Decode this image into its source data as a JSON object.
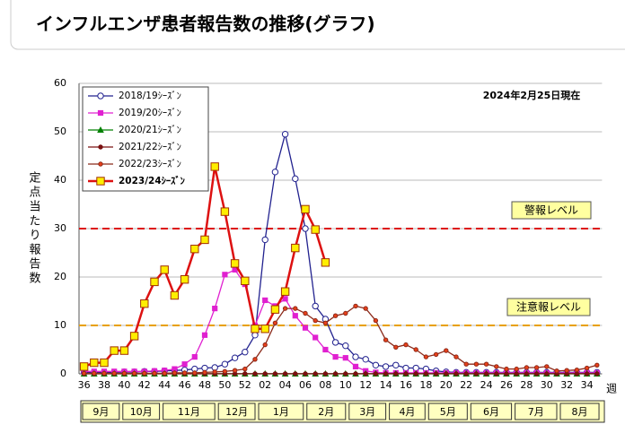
{
  "header": {
    "title": "インフルエンザ患者報告数の推移(グラフ)"
  },
  "chart_data": {
    "type": "line",
    "annotation": "2024年2月25日現在",
    "y_label": "定点当たり報告数",
    "x_label": "週",
    "categories": [
      "36",
      null,
      "38",
      null,
      "40",
      null,
      "42",
      null,
      "44",
      null,
      "46",
      null,
      "48",
      null,
      "50",
      null,
      "52",
      null,
      "02",
      null,
      "04",
      null,
      "06",
      null,
      "08",
      null,
      "10",
      null,
      "12",
      null,
      "14",
      null,
      "16",
      null,
      "18",
      null,
      "20",
      null,
      "22",
      null,
      "24",
      null,
      "26",
      null,
      "28",
      null,
      "30",
      null,
      "32",
      null,
      "34",
      null
    ],
    "months": [
      "9月",
      "10月",
      "11月",
      "12月",
      "1月",
      "2月",
      "3月",
      "4月",
      "5月",
      "6月",
      "7月",
      "8月"
    ],
    "ylim": [
      0,
      60
    ],
    "yticks": [
      0,
      10,
      20,
      30,
      40,
      50,
      60
    ],
    "grid": true,
    "legend": "upper left",
    "reference_lines": [
      {
        "value": 30,
        "label": "警報レベル",
        "color": "#dd1111"
      },
      {
        "value": 10,
        "label": "注意報レベル",
        "color": "#e8a000"
      }
    ],
    "series": [
      {
        "name": "2018/19ｼｰｽﾞﾝ",
        "color": "#22228f",
        "marker": "circle",
        "marker_fill": "#ffffff",
        "values": [
          0.3,
          0.3,
          0.3,
          0.3,
          0.4,
          0.4,
          0.5,
          0.5,
          0.6,
          0.7,
          0.8,
          1.0,
          1.2,
          1.3,
          2.0,
          3.3,
          4.5,
          8,
          27.7,
          41.7,
          49.5,
          40.3,
          30,
          14,
          11.3,
          6.5,
          5.8,
          3.5,
          3,
          1.8,
          1.5,
          1.8,
          1.2,
          1.2,
          1.0,
          0.6,
          0.4,
          0.3,
          0.3,
          0.3,
          0.3,
          0.3,
          0.3,
          0.3,
          0.3,
          0.3,
          0.3,
          0.3,
          0.3,
          0.3,
          0.3,
          0.3
        ]
      },
      {
        "name": "2019/20ｼｰｽﾞﾝ",
        "color": "#e020d0",
        "marker": "square",
        "marker_fill": "#e020d0",
        "values": [
          0.5,
          0.5,
          0.5,
          0.5,
          0.5,
          0.5,
          0.5,
          0.6,
          0.7,
          1.0,
          2.0,
          3.5,
          8.0,
          13.5,
          20.5,
          21.5,
          18.5,
          10,
          15.2,
          14,
          15.5,
          12,
          9.5,
          7.5,
          5,
          3.5,
          3.3,
          1.5,
          0.6,
          0.3,
          0.2,
          0.2,
          0.2,
          0.2,
          0.2,
          0.2,
          0.2,
          0.2,
          0.2,
          0.2,
          0.2,
          0.2,
          0.2,
          0.2,
          0.2,
          0.2,
          0.2,
          0.2,
          0.2,
          0.2,
          0.2,
          0.2
        ]
      },
      {
        "name": "2020/21ｼｰｽﾞﾝ",
        "color": "#008000",
        "marker": "triangle",
        "marker_fill": "#008000",
        "values": [
          0.01,
          0.01,
          0.01,
          0.01,
          0.01,
          0.01,
          0.01,
          0.01,
          0.01,
          0.01,
          0.01,
          0.01,
          0.01,
          0.01,
          0.01,
          0.01,
          0.01,
          0.01,
          0.01,
          0.01,
          0.01,
          0.01,
          0.01,
          0.01,
          0.01,
          0.01,
          0.01,
          0.01,
          0.01,
          0.01,
          0.01,
          0.01,
          0.01,
          0.01,
          0.01,
          0.01,
          0.01,
          0.01,
          0.01,
          0.01,
          0.01,
          0.01,
          0.01,
          0.01,
          0.01,
          0.01,
          0.01,
          0.01,
          0.01,
          0.01,
          0.01,
          0.01
        ]
      },
      {
        "name": "2021/22ｼｰｽﾞﾝ",
        "color": "#7a1010",
        "marker": "dot",
        "marker_fill": "#7a1010",
        "values": [
          0.02,
          0.02,
          0.02,
          0.02,
          0.02,
          0.02,
          0.02,
          0.02,
          0.02,
          0.02,
          0.02,
          0.02,
          0.02,
          0.02,
          0.02,
          0.02,
          0.02,
          0.02,
          0.02,
          0.02,
          0.02,
          0.02,
          0.02,
          0.02,
          0.02,
          0.02,
          0.02,
          0.02,
          0.02,
          0.02,
          0.02,
          0.02,
          0.02,
          0.02,
          0.02,
          0.02,
          0.02,
          0.02,
          0.02,
          0.02,
          0.02,
          0.02,
          0.02,
          0.02,
          0.02,
          0.02,
          0.02,
          0.02,
          0.02,
          0.02,
          0.02,
          0.02
        ]
      },
      {
        "name": "2022/23ｼｰｽﾞﾝ",
        "color": "#8b2a1a",
        "marker": "dot",
        "marker_fill": "#e8401a",
        "values": [
          0.1,
          0.1,
          0.1,
          0.1,
          0.1,
          0.1,
          0.1,
          0.1,
          0.1,
          0.2,
          0.2,
          0.2,
          0.3,
          0.4,
          0.5,
          0.7,
          1.0,
          3,
          6,
          10.5,
          13.5,
          13.5,
          12.5,
          11,
          10.5,
          12,
          12.5,
          14,
          13.5,
          11,
          7,
          5.5,
          6,
          5,
          3.5,
          4,
          4.8,
          3.5,
          2,
          2,
          2,
          1.5,
          1,
          1,
          1.3,
          1.3,
          1.5,
          0.6,
          0.7,
          0.8,
          1.2,
          1.8
        ]
      },
      {
        "name": "2023/24ｼｰｽﾞﾝ",
        "color": "#dd1111",
        "marker": "square",
        "marker_fill": "#ffee00",
        "values": [
          1.5,
          2.3,
          2.3,
          4.8,
          4.8,
          7.8,
          14.5,
          19,
          21.5,
          16.2,
          19.5,
          25.8,
          27.7,
          42.8,
          33.5,
          22.8,
          19.2,
          9.3,
          9.3,
          13.3,
          17,
          26,
          34,
          29.8,
          23,
          null,
          null,
          null,
          null,
          null,
          null,
          null,
          null,
          null,
          null,
          null,
          null,
          null,
          null,
          null,
          null,
          null,
          null,
          null,
          null,
          null,
          null,
          null,
          null,
          null,
          null,
          null
        ]
      }
    ]
  }
}
